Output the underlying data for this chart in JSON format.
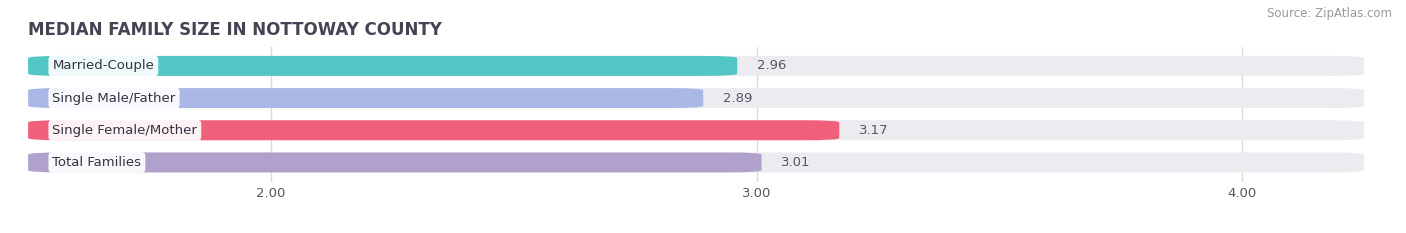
{
  "title": "MEDIAN FAMILY SIZE IN NOTTOWAY COUNTY",
  "source": "Source: ZipAtlas.com",
  "categories": [
    "Married-Couple",
    "Single Male/Father",
    "Single Female/Mother",
    "Total Families"
  ],
  "values": [
    2.96,
    2.89,
    3.17,
    3.01
  ],
  "bar_colors": [
    "#52c5c5",
    "#aab8e8",
    "#f0607a",
    "#b0a0cc"
  ],
  "bar_background_color": "#ebebf0",
  "xmin": 1.5,
  "xmax": 4.25,
  "xticks": [
    2.0,
    3.0,
    4.0
  ],
  "xtick_labels": [
    "2.00",
    "3.00",
    "4.00"
  ],
  "bar_height": 0.62,
  "label_fontsize": 9.5,
  "value_fontsize": 9.5,
  "title_fontsize": 12,
  "source_fontsize": 8.5,
  "background_color": "#ffffff",
  "grid_color": "#d8d8e0",
  "text_color": "#555566",
  "title_color": "#444455"
}
